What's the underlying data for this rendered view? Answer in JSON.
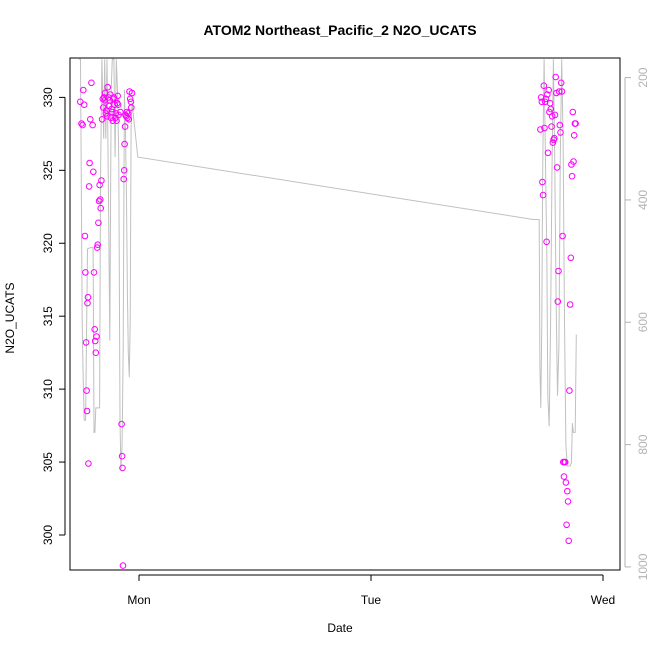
{
  "chart_data": {
    "type": "scatter",
    "title": "ATOM2 Northeast_Pacific_2 N2O_UCATS",
    "xlabel": "Date",
    "ylabel": "N2O_UCATS",
    "x_ticks": [
      "Mon",
      "Tue",
      "Wed"
    ],
    "y_ticks": [
      300,
      305,
      310,
      315,
      320,
      325,
      330
    ],
    "y2_ticks": [
      200,
      400,
      600,
      800,
      1000
    ],
    "ylim": [
      297.6,
      332.7
    ],
    "y2lim": [
      1005,
      168
    ],
    "grid": false,
    "colors": {
      "points": "#ff00ff",
      "line": "#c0c0c0",
      "axis": "#000000",
      "right_axis": "#b3b3b3"
    },
    "series": [
      {
        "kind": "points",
        "values": [
          [
            -0.253,
            329.7
          ],
          [
            -0.248,
            328.2
          ],
          [
            -0.243,
            328.1
          ],
          [
            -0.24,
            330.5
          ],
          [
            -0.236,
            329.5
          ],
          [
            -0.233,
            320.5
          ],
          [
            -0.231,
            318.0
          ],
          [
            -0.228,
            313.2
          ],
          [
            -0.226,
            309.9
          ],
          [
            -0.224,
            308.5
          ],
          [
            -0.222,
            315.9
          ],
          [
            -0.22,
            316.3
          ],
          [
            -0.218,
            304.9
          ],
          [
            -0.215,
            323.9
          ],
          [
            -0.213,
            325.5
          ],
          [
            -0.21,
            328.5
          ],
          [
            -0.205,
            331.0
          ],
          [
            -0.2,
            328.1
          ],
          [
            -0.197,
            324.9
          ],
          [
            -0.194,
            318.0
          ],
          [
            -0.191,
            314.1
          ],
          [
            -0.189,
            313.3
          ],
          [
            -0.186,
            312.5
          ],
          [
            -0.183,
            313.6
          ],
          [
            -0.18,
            319.7
          ],
          [
            -0.178,
            319.9
          ],
          [
            -0.175,
            321.4
          ],
          [
            -0.172,
            322.9
          ],
          [
            -0.17,
            324.0
          ],
          [
            -0.167,
            323.0
          ],
          [
            -0.165,
            322.4
          ],
          [
            -0.162,
            324.3
          ],
          [
            -0.159,
            328.5
          ],
          [
            -0.156,
            329.9
          ],
          [
            -0.154,
            329.3
          ],
          [
            -0.151,
            330.0
          ],
          [
            -0.148,
            329.8
          ],
          [
            -0.146,
            330.3
          ],
          [
            -0.143,
            328.9
          ],
          [
            -0.14,
            329.1
          ],
          [
            -0.137,
            328.7
          ],
          [
            -0.135,
            330.7
          ],
          [
            -0.132,
            330.0
          ],
          [
            -0.129,
            329.4
          ],
          [
            -0.126,
            329.8
          ],
          [
            -0.124,
            330.2
          ],
          [
            -0.121,
            328.6
          ],
          [
            -0.118,
            329.2
          ],
          [
            -0.116,
            329.0
          ],
          [
            -0.113,
            328.4
          ],
          [
            -0.111,
            329.9
          ],
          [
            -0.108,
            330.0
          ],
          [
            -0.105,
            329.5
          ],
          [
            -0.102,
            328.6
          ],
          [
            -0.1,
            328.9
          ],
          [
            -0.097,
            328.4
          ],
          [
            -0.094,
            329.6
          ],
          [
            -0.092,
            330.1
          ],
          [
            -0.09,
            329.5
          ],
          [
            -0.088,
            328.8
          ],
          [
            -0.08,
            329.0
          ],
          [
            -0.075,
            307.6
          ],
          [
            -0.073,
            305.4
          ],
          [
            -0.071,
            304.6
          ],
          [
            -0.069,
            297.9
          ],
          [
            -0.066,
            324.4
          ],
          [
            -0.064,
            325.0
          ],
          [
            -0.062,
            326.8
          ],
          [
            -0.06,
            328.0
          ],
          [
            -0.058,
            328.8
          ],
          [
            -0.055,
            328.7
          ],
          [
            -0.052,
            329.0
          ],
          [
            -0.05,
            328.6
          ],
          [
            -0.047,
            328.9
          ],
          [
            -0.044,
            328.5
          ],
          [
            -0.041,
            330.4
          ],
          [
            -0.038,
            329.9
          ],
          [
            -0.035,
            329.7
          ],
          [
            -0.033,
            329.3
          ],
          [
            -0.03,
            330.3
          ],
          [
            1.73,
            327.8
          ],
          [
            1.733,
            330.0
          ],
          [
            1.736,
            329.7
          ],
          [
            1.739,
            324.2
          ],
          [
            1.742,
            323.3
          ],
          [
            1.745,
            330.8
          ],
          [
            1.748,
            327.9
          ],
          [
            1.751,
            329.7
          ],
          [
            1.754,
            329.9
          ],
          [
            1.757,
            320.1
          ],
          [
            1.76,
            330.2
          ],
          [
            1.763,
            326.2
          ],
          [
            1.766,
            330.5
          ],
          [
            1.769,
            329.0
          ],
          [
            1.772,
            329.6
          ],
          [
            1.775,
            329.2
          ],
          [
            1.778,
            328.0
          ],
          [
            1.781,
            328.7
          ],
          [
            1.784,
            326.9
          ],
          [
            1.787,
            327.1
          ],
          [
            1.79,
            327.2
          ],
          [
            1.793,
            328.8
          ],
          [
            1.796,
            331.4
          ],
          [
            1.799,
            330.3
          ],
          [
            1.802,
            325.2
          ],
          [
            1.805,
            316.0
          ],
          [
            1.808,
            318.1
          ],
          [
            1.811,
            330.4
          ],
          [
            1.814,
            328.1
          ],
          [
            1.817,
            327.6
          ],
          [
            1.82,
            331.0
          ],
          [
            1.823,
            330.4
          ],
          [
            1.826,
            320.5
          ],
          [
            1.829,
            305.0
          ],
          [
            1.832,
            304.0
          ],
          [
            1.834,
            305.0
          ],
          [
            1.837,
            305.0
          ],
          [
            1.84,
            303.6
          ],
          [
            1.843,
            300.7
          ],
          [
            1.846,
            303.0
          ],
          [
            1.849,
            302.3
          ],
          [
            1.852,
            299.6
          ],
          [
            1.855,
            309.9
          ],
          [
            1.858,
            315.8
          ],
          [
            1.861,
            319.0
          ],
          [
            1.864,
            325.4
          ],
          [
            1.867,
            324.6
          ],
          [
            1.87,
            329.0
          ],
          [
            1.873,
            325.6
          ],
          [
            1.876,
            327.4
          ],
          [
            1.879,
            328.2
          ],
          [
            1.882,
            328.2
          ]
        ]
      },
      {
        "kind": "line",
        "axis": "right",
        "values": [
          [
            -0.26,
            170
          ],
          [
            -0.252,
            170
          ],
          [
            -0.245,
            600
          ],
          [
            -0.24,
            700
          ],
          [
            -0.236,
            760
          ],
          [
            -0.23,
            760
          ],
          [
            -0.222,
            480
          ],
          [
            -0.21,
            478
          ],
          [
            -0.198,
            478
          ],
          [
            -0.194,
            780
          ],
          [
            -0.19,
            780
          ],
          [
            -0.186,
            740
          ],
          [
            -0.18,
            740
          ],
          [
            -0.17,
            740
          ],
          [
            -0.166,
            370
          ],
          [
            -0.16,
            170
          ],
          [
            -0.152,
            300
          ],
          [
            -0.148,
            170
          ],
          [
            -0.143,
            300
          ],
          [
            -0.138,
            170
          ],
          [
            -0.132,
            380
          ],
          [
            -0.126,
            630
          ],
          [
            -0.12,
            220
          ],
          [
            -0.115,
            170
          ],
          [
            -0.108,
            170
          ],
          [
            -0.103,
            330
          ],
          [
            -0.098,
            170
          ],
          [
            -0.092,
            230
          ],
          [
            -0.087,
            340
          ],
          [
            -0.082,
            760
          ],
          [
            -0.078,
            840
          ],
          [
            -0.073,
            800
          ],
          [
            -0.068,
            640
          ],
          [
            -0.063,
            220
          ],
          [
            -0.058,
            290
          ],
          [
            -0.054,
            400
          ],
          [
            -0.05,
            550
          ],
          [
            -0.046,
            650
          ],
          [
            -0.042,
            690
          ],
          [
            -0.038,
            600
          ],
          [
            -0.034,
            280
          ],
          [
            -0.03,
            240
          ],
          [
            -0.005,
            330
          ],
          [
            1.7,
            432
          ],
          [
            1.725,
            432
          ],
          [
            1.728,
            670
          ],
          [
            1.732,
            740
          ],
          [
            1.736,
            600
          ],
          [
            1.74,
            350
          ],
          [
            1.746,
            170
          ],
          [
            1.752,
            340
          ],
          [
            1.758,
            500
          ],
          [
            1.762,
            720
          ],
          [
            1.768,
            770
          ],
          [
            1.774,
            600
          ],
          [
            1.78,
            350
          ],
          [
            1.786,
            170
          ],
          [
            1.792,
            330
          ],
          [
            1.798,
            560
          ],
          [
            1.804,
            720
          ],
          [
            1.81,
            640
          ],
          [
            1.816,
            330
          ],
          [
            1.822,
            170
          ],
          [
            1.828,
            300
          ],
          [
            1.834,
            600
          ],
          [
            1.84,
            800
          ],
          [
            1.846,
            835
          ],
          [
            1.852,
            835
          ],
          [
            1.858,
            835
          ],
          [
            1.864,
            830
          ],
          [
            1.868,
            765
          ],
          [
            1.872,
            780
          ],
          [
            1.876,
            780
          ],
          [
            1.88,
            780
          ],
          [
            1.885,
            620
          ]
        ]
      }
    ]
  }
}
